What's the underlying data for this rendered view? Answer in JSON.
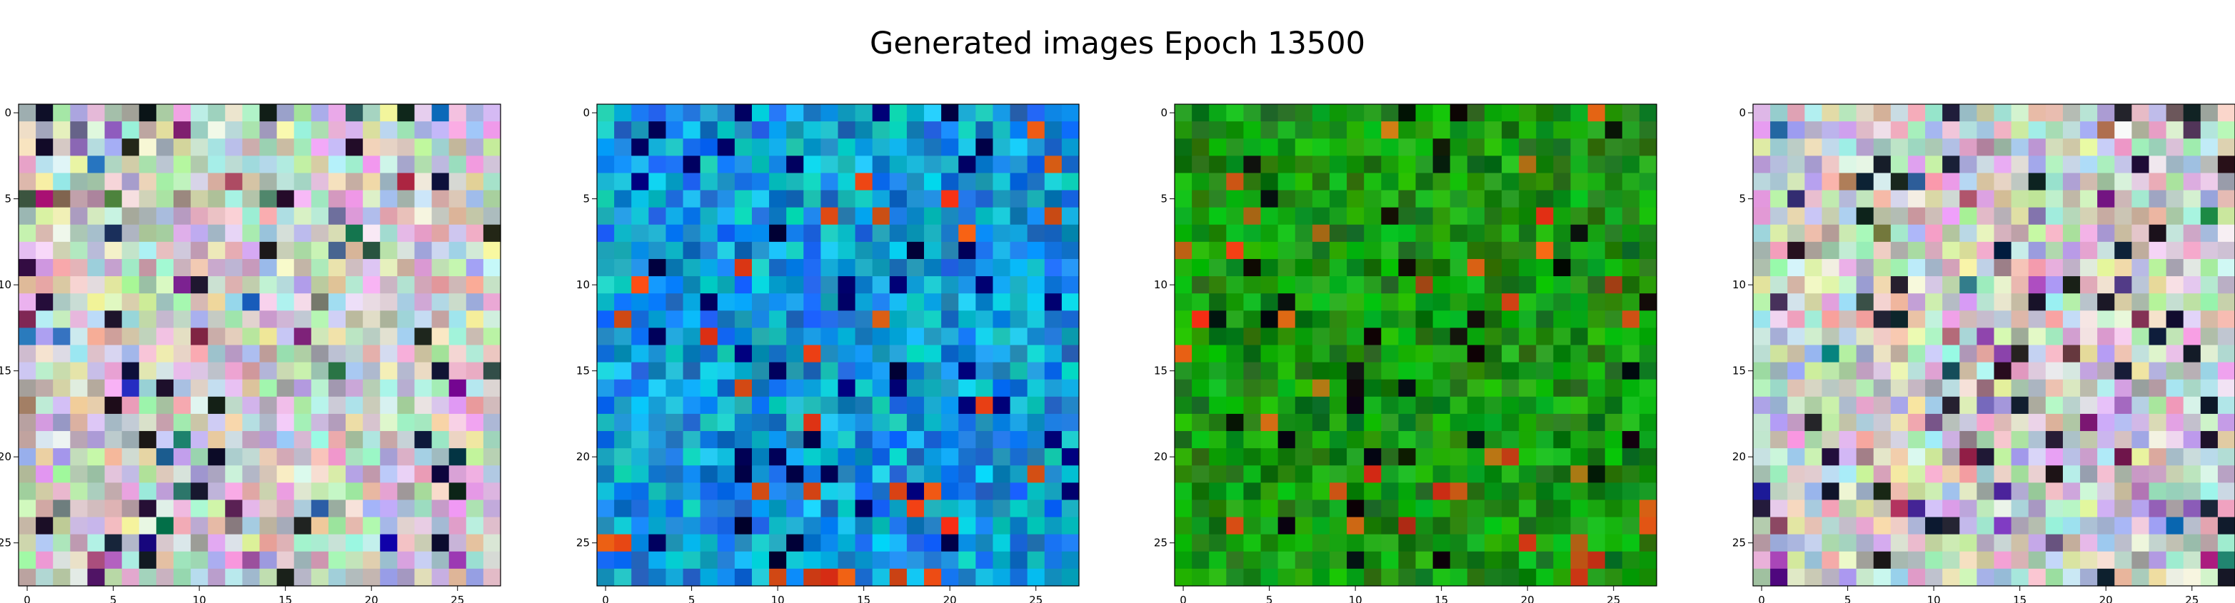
{
  "figure": {
    "title": "Generated images Epoch 13500"
  },
  "chart_data": [
    {
      "type": "heatmap",
      "title": "",
      "xlabel": "",
      "ylabel": "",
      "grid": "28x28",
      "colormap_style": "pastel-multicolor",
      "base_color": "#c8c8c8",
      "xticks": [
        "0",
        "5",
        "10",
        "15",
        "20",
        "25"
      ],
      "yticks": [
        "0",
        "5",
        "10",
        "15",
        "20",
        "25"
      ],
      "xlim": [
        -0.5,
        27.5
      ],
      "ylim": [
        27.5,
        -0.5
      ]
    },
    {
      "type": "heatmap",
      "title": "",
      "xlabel": "",
      "ylabel": "",
      "grid": "28x28",
      "colormap_style": "blue-cyan",
      "base_color": "#1f7fd6",
      "xticks": [
        "0",
        "5",
        "10",
        "15",
        "20",
        "25"
      ],
      "yticks": [
        "0",
        "5",
        "10",
        "15",
        "20",
        "25"
      ],
      "xlim": [
        -0.5,
        27.5
      ],
      "ylim": [
        27.5,
        -0.5
      ]
    },
    {
      "type": "heatmap",
      "title": "",
      "xlabel": "",
      "ylabel": "",
      "grid": "28x28",
      "colormap_style": "green-dominant",
      "base_color": "#0b9a0b",
      "xticks": [
        "0",
        "5",
        "10",
        "15",
        "20",
        "25"
      ],
      "yticks": [
        "0",
        "5",
        "10",
        "15",
        "20",
        "25"
      ],
      "xlim": [
        -0.5,
        27.5
      ],
      "ylim": [
        27.5,
        -0.5
      ]
    },
    {
      "type": "heatmap",
      "title": "",
      "xlabel": "",
      "ylabel": "",
      "grid": "28x28",
      "colormap_style": "pastel-multicolor",
      "base_color": "#c8c8c8",
      "xticks": [
        "0",
        "5",
        "10",
        "15",
        "20",
        "25"
      ],
      "yticks": [
        "0",
        "5",
        "10",
        "15",
        "20",
        "25"
      ],
      "xlim": [
        -0.5,
        27.5
      ],
      "ylim": [
        27.5,
        -0.5
      ]
    }
  ]
}
